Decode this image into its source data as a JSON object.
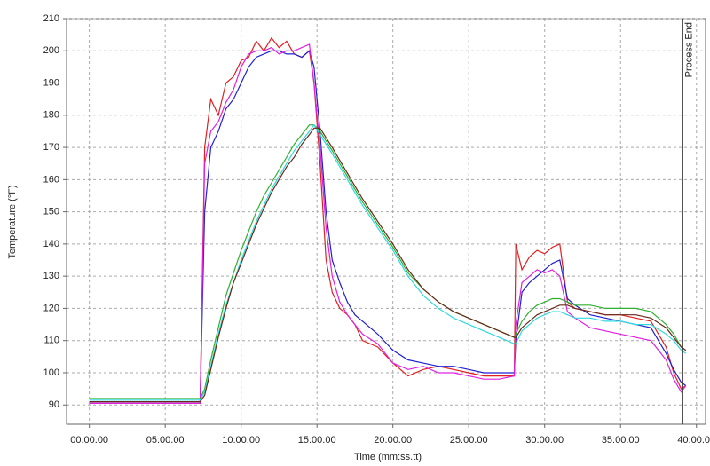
{
  "chart_data": {
    "type": "line",
    "y_label": "Temperature (°F)",
    "x_label": "Time (mm:ss.tt)",
    "annotation": {
      "text": "Process End",
      "x": 39.1
    },
    "grid": true,
    "xlim": [
      -1.5,
      40.6
    ],
    "xticks": [
      {
        "value": 0,
        "label": "00:00.00"
      },
      {
        "value": 5,
        "label": "05:00.00"
      },
      {
        "value": 10,
        "label": "10:00.00"
      },
      {
        "value": 15,
        "label": "15:00.00"
      },
      {
        "value": 20,
        "label": "20:00.00"
      },
      {
        "value": 25,
        "label": "25:00.00"
      },
      {
        "value": 30,
        "label": "30:00.00"
      },
      {
        "value": 35,
        "label": "35:00.00"
      },
      {
        "value": 40,
        "label": "40:00.00"
      }
    ],
    "ylim": [
      84,
      210
    ],
    "yticks": [
      90,
      100,
      110,
      120,
      130,
      140,
      150,
      160,
      170,
      180,
      190,
      200,
      210
    ],
    "x": [
      0,
      2,
      4,
      6,
      7.3,
      7.6,
      8,
      8.5,
      9,
      9.5,
      10,
      10.5,
      11,
      11.5,
      12,
      12.5,
      13,
      13.5,
      14,
      14.5,
      14.8,
      15.2,
      15.6,
      16,
      16.5,
      17,
      17.5,
      18,
      19,
      20,
      21,
      22,
      23,
      24,
      25,
      26,
      27,
      28,
      28.1,
      28.5,
      29,
      29.5,
      30,
      30.5,
      31,
      31.5,
      32,
      33,
      34,
      35,
      36,
      37,
      38,
      38.5,
      39,
      39.3
    ],
    "series": [
      {
        "color": "#e02020",
        "values": [
          91,
          91,
          91,
          91,
          91,
          170,
          185,
          180,
          190,
          192,
          197,
          198,
          203,
          200,
          204,
          201,
          203,
          199,
          198,
          200,
          190,
          165,
          135,
          125,
          120,
          118,
          115,
          110,
          108,
          103,
          99,
          101,
          102,
          101,
          100,
          99,
          99,
          99,
          140,
          132,
          136,
          138,
          137,
          139,
          140,
          122,
          120,
          119,
          118,
          118,
          117,
          116,
          108,
          100,
          95,
          96
        ]
      },
      {
        "color": "#2020d0",
        "values": [
          91,
          91,
          91,
          91,
          91,
          150,
          170,
          175,
          182,
          185,
          190,
          195,
          198,
          199,
          200,
          200,
          199,
          199,
          198,
          200,
          195,
          175,
          150,
          135,
          128,
          122,
          118,
          116,
          112,
          107,
          104,
          103,
          102,
          102,
          101,
          100,
          100,
          100,
          110,
          125,
          128,
          130,
          132,
          134,
          135,
          123,
          121,
          118,
          117,
          116,
          115,
          114,
          106,
          101,
          97,
          96
        ]
      },
      {
        "color": "#e020e0",
        "values": [
          90.5,
          90.5,
          90.5,
          90.5,
          90.5,
          165,
          175,
          178,
          184,
          188,
          195,
          199,
          200,
          200,
          201,
          199,
          200,
          200,
          201,
          202,
          190,
          170,
          145,
          130,
          122,
          118,
          115,
          112,
          109,
          103,
          101,
          102,
          100,
          100,
          99,
          98,
          98,
          99,
          115,
          128,
          130,
          132,
          131,
          132,
          130,
          119,
          117,
          114,
          113,
          112,
          111,
          110,
          104,
          98,
          94,
          96
        ]
      },
      {
        "color": "#30b030",
        "values": [
          92,
          92,
          92,
          92,
          92,
          95,
          104,
          114,
          124,
          131,
          138,
          144,
          150,
          155,
          159,
          163,
          167,
          171,
          174,
          177,
          177,
          175,
          172,
          169,
          165,
          161,
          157,
          153,
          146,
          139,
          131,
          126,
          122,
          119,
          117,
          115,
          113,
          111,
          112,
          116,
          119,
          121,
          122,
          123,
          123,
          122,
          121,
          121,
          120,
          120,
          120,
          119,
          115,
          112,
          108,
          107
        ]
      },
      {
        "color": "#30d8e0",
        "values": [
          91.5,
          91.5,
          91.5,
          91.5,
          91.5,
          94,
          102,
          112,
          121,
          128,
          135,
          141,
          147,
          152,
          157,
          161,
          165,
          169,
          172,
          175,
          177,
          174,
          171,
          168,
          164,
          160,
          156,
          152,
          145,
          138,
          130,
          124,
          120,
          117,
          115,
          113,
          111,
          109,
          109,
          113,
          115,
          117,
          118,
          119,
          119,
          118,
          117,
          117,
          116,
          116,
          115,
          115,
          112,
          110,
          107,
          106
        ]
      },
      {
        "color": "#6a2a1a",
        "values": [
          91,
          91,
          91,
          91,
          91,
          93,
          101,
          111,
          120,
          128,
          134,
          140,
          146,
          151,
          156,
          160,
          164,
          167,
          171,
          174,
          176,
          176,
          173,
          170,
          166,
          162,
          158,
          154,
          147,
          140,
          132,
          126,
          122,
          119,
          117,
          115,
          113,
          111,
          111,
          114,
          116,
          118,
          119,
          120,
          121,
          121,
          120,
          119,
          118,
          118,
          118,
          117,
          114,
          111,
          108,
          107
        ]
      }
    ]
  }
}
